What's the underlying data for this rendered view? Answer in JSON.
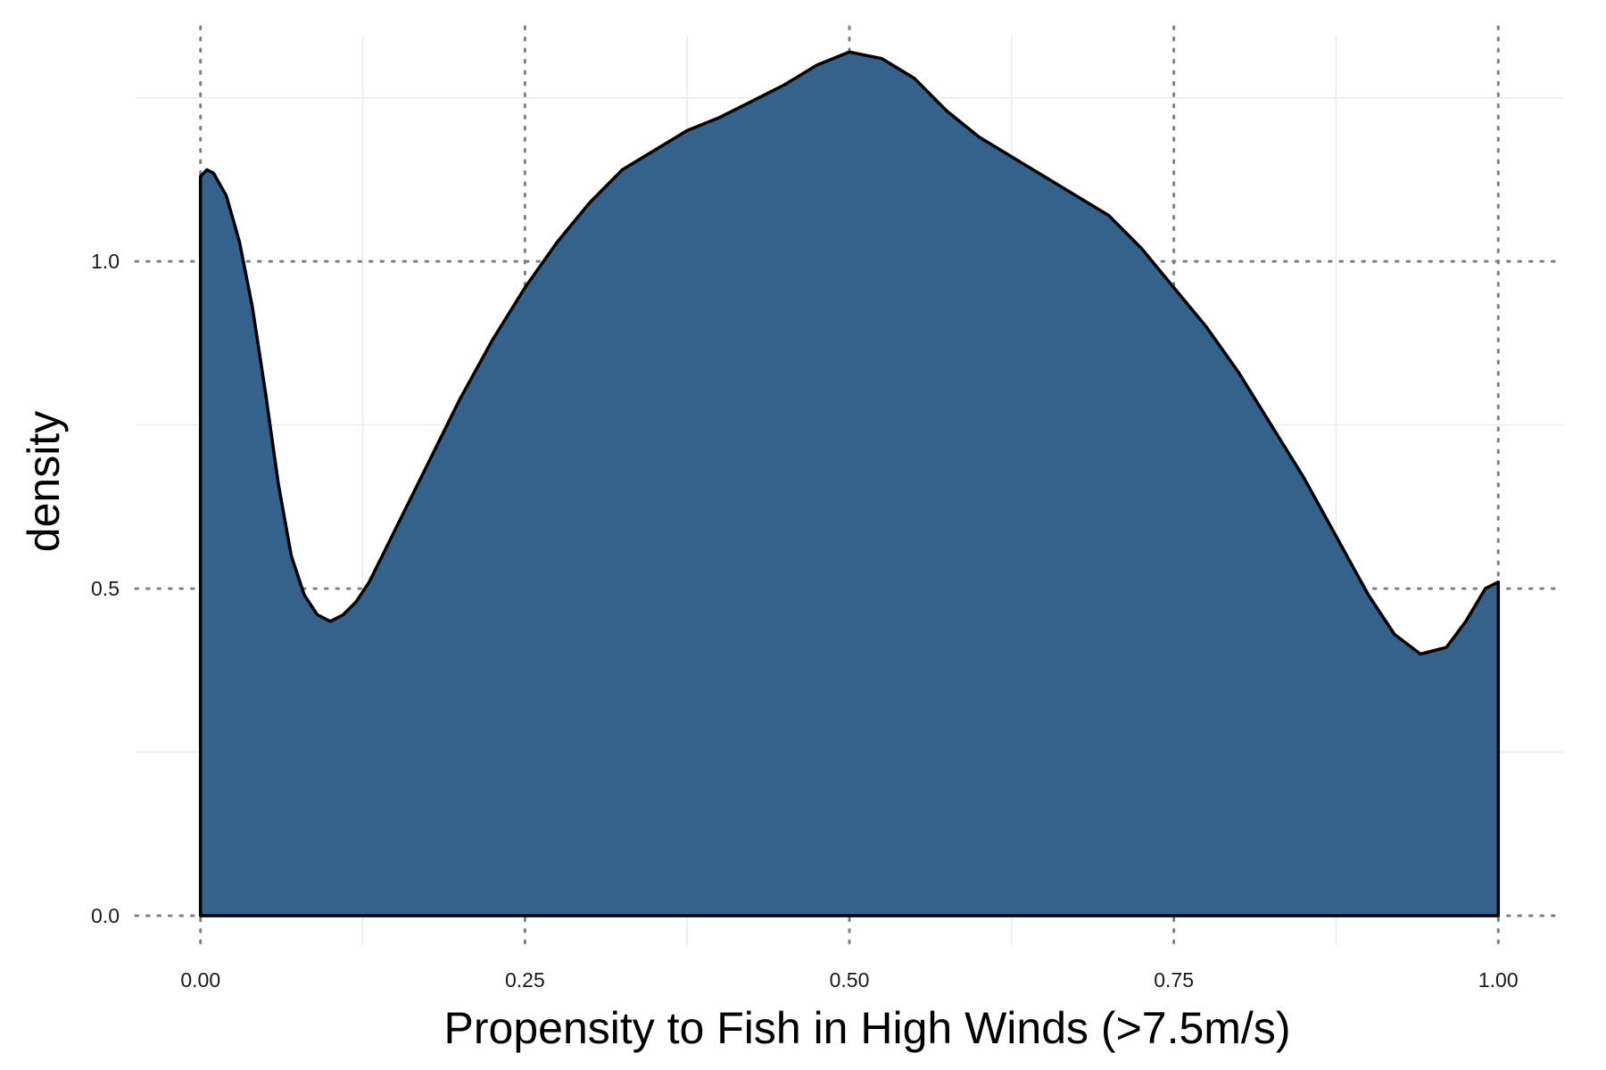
{
  "chart_data": {
    "type": "area",
    "title": "",
    "xlabel": "Propensity to Fish in High Winds (>7.5m/s)",
    "ylabel": "density",
    "xlim": [
      -0.05,
      1.05
    ],
    "ylim": [
      -0.045,
      1.345
    ],
    "x_ticks": [
      0.0,
      0.25,
      0.5,
      0.75,
      1.0
    ],
    "x_tick_labels": [
      "0.00",
      "0.25",
      "0.50",
      "0.75",
      "1.00"
    ],
    "y_ticks": [
      0.0,
      0.5,
      1.0
    ],
    "y_tick_labels": [
      "0.0",
      "0.5",
      "1.0"
    ],
    "grid": true,
    "major_grid_style": "dotted",
    "minor_grid_style": "solid",
    "fill_color": "#35628a",
    "outline_color": "#000000",
    "minor_grid_color": "#ebebeb",
    "major_grid_color": "#7f7f7f",
    "series": [
      {
        "x": [
          0.0,
          0.005,
          0.01,
          0.02,
          0.03,
          0.04,
          0.05,
          0.06,
          0.07,
          0.08,
          0.09,
          0.1,
          0.11,
          0.12,
          0.13,
          0.14,
          0.15,
          0.175,
          0.2,
          0.225,
          0.25,
          0.275,
          0.3,
          0.325,
          0.35,
          0.375,
          0.4,
          0.425,
          0.45,
          0.475,
          0.5,
          0.525,
          0.55,
          0.575,
          0.6,
          0.625,
          0.65,
          0.675,
          0.7,
          0.725,
          0.75,
          0.775,
          0.8,
          0.825,
          0.85,
          0.875,
          0.9,
          0.92,
          0.94,
          0.96,
          0.975,
          0.99,
          1.0
        ],
        "y": [
          1.13,
          1.14,
          1.135,
          1.1,
          1.03,
          0.93,
          0.8,
          0.66,
          0.55,
          0.49,
          0.46,
          0.45,
          0.46,
          0.48,
          0.51,
          0.55,
          0.59,
          0.69,
          0.79,
          0.88,
          0.96,
          1.03,
          1.09,
          1.14,
          1.17,
          1.2,
          1.22,
          1.245,
          1.27,
          1.3,
          1.32,
          1.31,
          1.28,
          1.23,
          1.19,
          1.16,
          1.13,
          1.1,
          1.07,
          1.02,
          0.96,
          0.9,
          0.83,
          0.75,
          0.67,
          0.58,
          0.49,
          0.43,
          0.4,
          0.41,
          0.45,
          0.5,
          0.51
        ]
      }
    ]
  }
}
